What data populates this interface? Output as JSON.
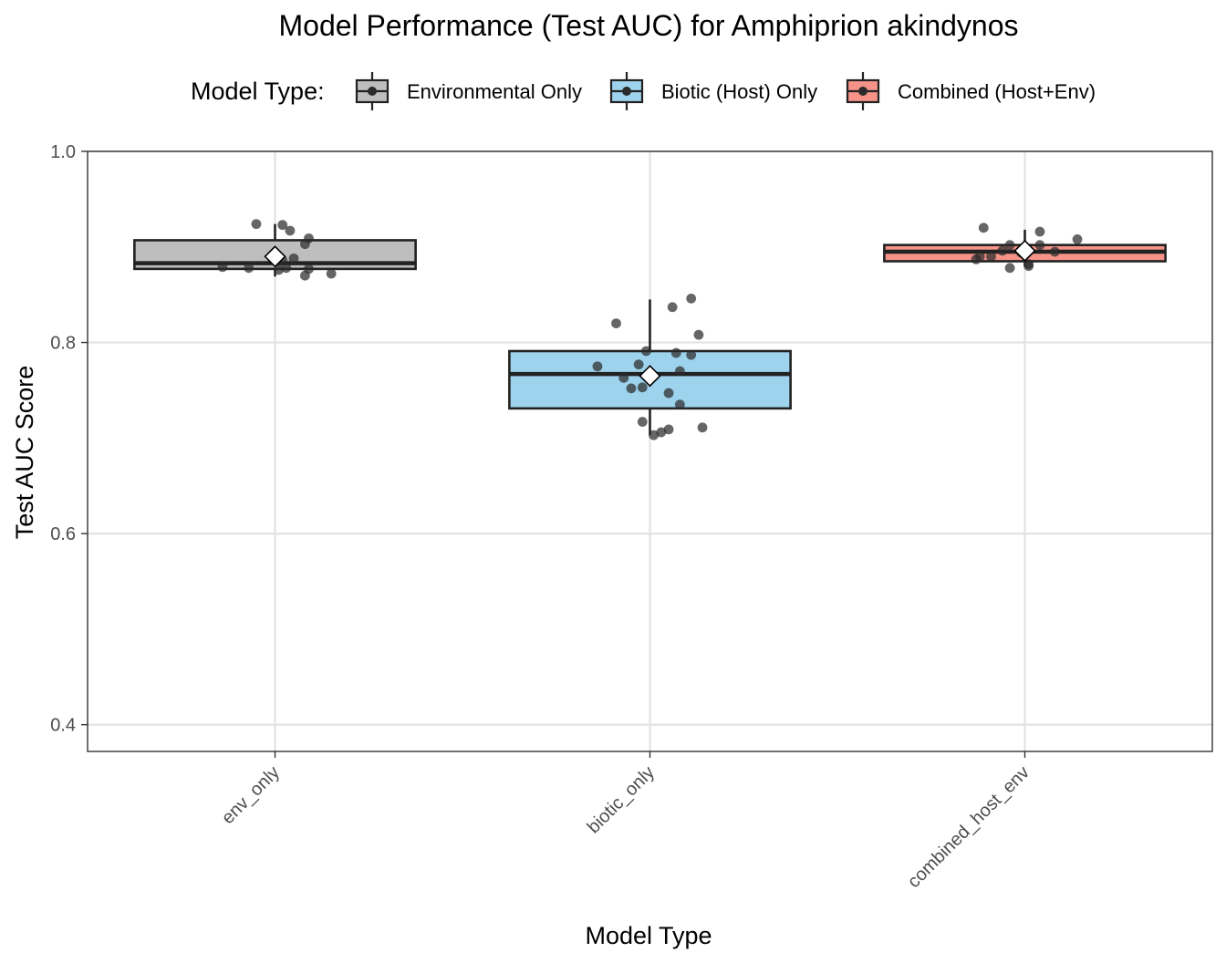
{
  "chart_data": {
    "type": "box",
    "title": "Model Performance (Test AUC) for Amphiprion akindynos",
    "xlabel": "Model Type",
    "ylabel": "Test AUC Score",
    "ylim": [
      0.372,
      1.0
    ],
    "yticks": [
      "0.4",
      "0.6",
      "0.8",
      "1.0"
    ],
    "grid": true,
    "legend": {
      "title": "Model Type:",
      "position": "top",
      "entries": [
        "Environmental Only",
        "Biotic (Host) Only",
        "Combined (Host+Env)"
      ]
    },
    "categories": [
      "env_only",
      "biotic_only",
      "combined_host_env"
    ],
    "series": [
      {
        "name": "Environmental Only",
        "color": "#bebebe",
        "box": {
          "q1": 0.877,
          "median": 0.883,
          "q3": 0.907,
          "whisker_low": 0.869,
          "whisker_high": 0.924
        },
        "mean": 0.89,
        "points": [
          {
            "x": -0.14,
            "y": 0.879
          },
          {
            "x": -0.07,
            "y": 0.878
          },
          {
            "x": -0.05,
            "y": 0.924
          },
          {
            "x": 0.02,
            "y": 0.923
          },
          {
            "x": 0.04,
            "y": 0.917
          },
          {
            "x": 0.08,
            "y": 0.903
          },
          {
            "x": 0.09,
            "y": 0.909
          },
          {
            "x": 0.02,
            "y": 0.886
          },
          {
            "x": 0.01,
            "y": 0.876
          },
          {
            "x": 0.03,
            "y": 0.878
          },
          {
            "x": 0.09,
            "y": 0.877
          },
          {
            "x": 0.08,
            "y": 0.87
          },
          {
            "x": 0.15,
            "y": 0.872
          },
          {
            "x": 0.05,
            "y": 0.888
          }
        ]
      },
      {
        "name": "Biotic (Host) Only",
        "color": "#9ed3ed",
        "box": {
          "q1": 0.731,
          "median": 0.767,
          "q3": 0.791,
          "whisker_low": 0.703,
          "whisker_high": 0.845
        },
        "mean": 0.765,
        "points": [
          {
            "x": -0.09,
            "y": 0.82
          },
          {
            "x": 0.06,
            "y": 0.837
          },
          {
            "x": 0.11,
            "y": 0.846
          },
          {
            "x": 0.13,
            "y": 0.808
          },
          {
            "x": -0.01,
            "y": 0.791
          },
          {
            "x": 0.07,
            "y": 0.789
          },
          {
            "x": 0.11,
            "y": 0.787
          },
          {
            "x": -0.14,
            "y": 0.775
          },
          {
            "x": -0.03,
            "y": 0.777
          },
          {
            "x": 0.08,
            "y": 0.77
          },
          {
            "x": -0.07,
            "y": 0.763
          },
          {
            "x": -0.05,
            "y": 0.752
          },
          {
            "x": -0.02,
            "y": 0.753
          },
          {
            "x": 0.05,
            "y": 0.747
          },
          {
            "x": 0.08,
            "y": 0.735
          },
          {
            "x": -0.02,
            "y": 0.717
          },
          {
            "x": 0.05,
            "y": 0.709
          },
          {
            "x": 0.03,
            "y": 0.706
          },
          {
            "x": 0.01,
            "y": 0.703
          },
          {
            "x": 0.14,
            "y": 0.711
          }
        ]
      },
      {
        "name": "Combined (Host+Env)",
        "color": "#f59389",
        "box": {
          "q1": 0.885,
          "median": 0.895,
          "q3": 0.902,
          "whisker_low": 0.88,
          "whisker_high": 0.918
        },
        "mean": 0.896,
        "points": [
          {
            "x": -0.11,
            "y": 0.92
          },
          {
            "x": 0.04,
            "y": 0.916
          },
          {
            "x": 0.14,
            "y": 0.908
          },
          {
            "x": -0.04,
            "y": 0.902
          },
          {
            "x": 0.04,
            "y": 0.902
          },
          {
            "x": -0.06,
            "y": 0.896
          },
          {
            "x": 0.08,
            "y": 0.895
          },
          {
            "x": -0.09,
            "y": 0.89
          },
          {
            "x": -0.13,
            "y": 0.887
          },
          {
            "x": -0.12,
            "y": 0.89
          },
          {
            "x": -0.04,
            "y": 0.878
          },
          {
            "x": 0.01,
            "y": 0.88
          },
          {
            "x": 0.01,
            "y": 0.882
          },
          {
            "x": -0.01,
            "y": 0.894
          }
        ]
      }
    ]
  }
}
